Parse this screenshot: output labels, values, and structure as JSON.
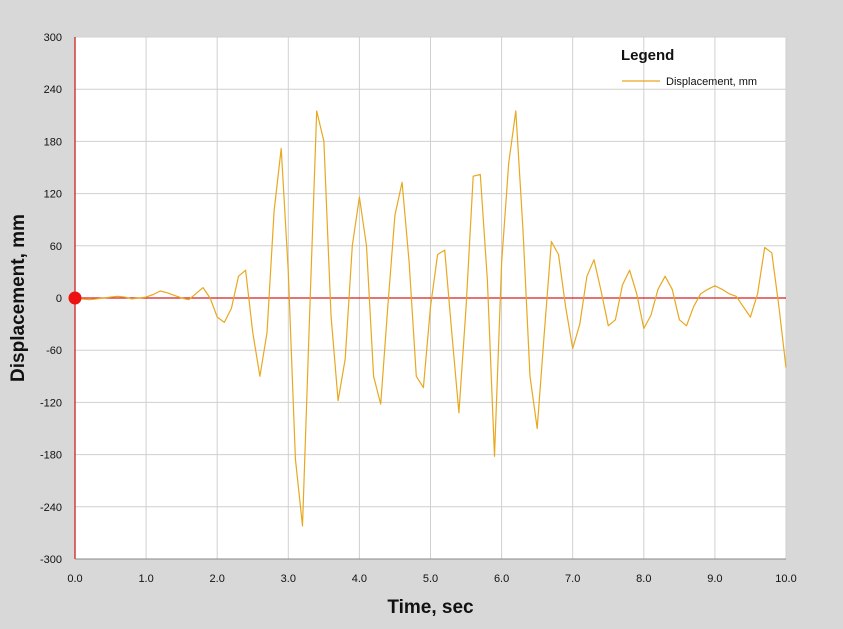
{
  "chart_data": {
    "type": "line",
    "title": "",
    "xlabel": "Time,  sec",
    "ylabel": "Displacement,  mm",
    "xlim": [
      0,
      10
    ],
    "ylim": [
      -300,
      300
    ],
    "xticks": [
      "0.0",
      "1.0",
      "2.0",
      "3.0",
      "4.0",
      "5.0",
      "6.0",
      "7.0",
      "8.0",
      "9.0",
      "10.0"
    ],
    "yticks": [
      "300",
      "240",
      "180",
      "120",
      "60",
      "0",
      "-60",
      "-120",
      "-180",
      "-240",
      "-300"
    ],
    "grid": true,
    "legend": {
      "title": "Legend",
      "position": "top-right"
    },
    "colors": {
      "series": "#e8a820",
      "zero_line": "#d42020",
      "marker": "#ee1111",
      "axis": "#cc2222",
      "grid": "#d0d0d0",
      "background": "#ffffff",
      "frame": "#d8d8d8"
    },
    "series": [
      {
        "name": "Displacement, mm",
        "x": [
          0,
          0.1,
          0.2,
          0.3,
          0.4,
          0.5,
          0.6,
          0.7,
          0.8,
          0.9,
          1.0,
          1.1,
          1.2,
          1.3,
          1.4,
          1.5,
          1.6,
          1.7,
          1.8,
          1.9,
          2.0,
          2.1,
          2.2,
          2.3,
          2.4,
          2.5,
          2.6,
          2.7,
          2.8,
          2.9,
          3.0,
          3.1,
          3.2,
          3.3,
          3.4,
          3.5,
          3.6,
          3.7,
          3.8,
          3.9,
          4.0,
          4.1,
          4.2,
          4.3,
          4.4,
          4.5,
          4.6,
          4.7,
          4.8,
          4.9,
          5.0,
          5.1,
          5.2,
          5.3,
          5.4,
          5.5,
          5.6,
          5.7,
          5.8,
          5.9,
          6.0,
          6.1,
          6.2,
          6.3,
          6.4,
          6.5,
          6.6,
          6.7,
          6.8,
          6.9,
          7.0,
          7.1,
          7.2,
          7.3,
          7.4,
          7.5,
          7.6,
          7.7,
          7.8,
          7.9,
          8.0,
          8.1,
          8.2,
          8.3,
          8.4,
          8.5,
          8.6,
          8.7,
          8.8,
          8.9,
          9.0,
          9.1,
          9.2,
          9.3,
          9.4,
          9.5,
          9.6,
          9.7,
          9.8,
          9.9,
          10.0
        ],
        "y": [
          0,
          -1,
          -2,
          -1,
          0,
          1,
          2,
          1,
          -1,
          0,
          1,
          4,
          8,
          6,
          3,
          0,
          -2,
          5,
          12,
          0,
          -22,
          -28,
          -12,
          25,
          32,
          -40,
          -90,
          -40,
          100,
          172,
          30,
          -185,
          -262,
          -20,
          215,
          180,
          -20,
          -118,
          -70,
          60,
          116,
          60,
          -90,
          -122,
          -10,
          95,
          133,
          40,
          -90,
          -103,
          -10,
          50,
          55,
          -40,
          -132,
          -10,
          140,
          142,
          20,
          -182,
          40,
          155,
          215,
          80,
          -90,
          -150,
          -40,
          65,
          50,
          -10,
          -58,
          -30,
          25,
          44,
          8,
          -32,
          -25,
          15,
          32,
          5,
          -35,
          -20,
          10,
          25,
          10,
          -25,
          -32,
          -10,
          5,
          10,
          14,
          10,
          5,
          2,
          -10,
          -22,
          5,
          58,
          52,
          -10,
          -80
        ]
      }
    ],
    "marker": {
      "x": 0,
      "y": 0
    }
  }
}
